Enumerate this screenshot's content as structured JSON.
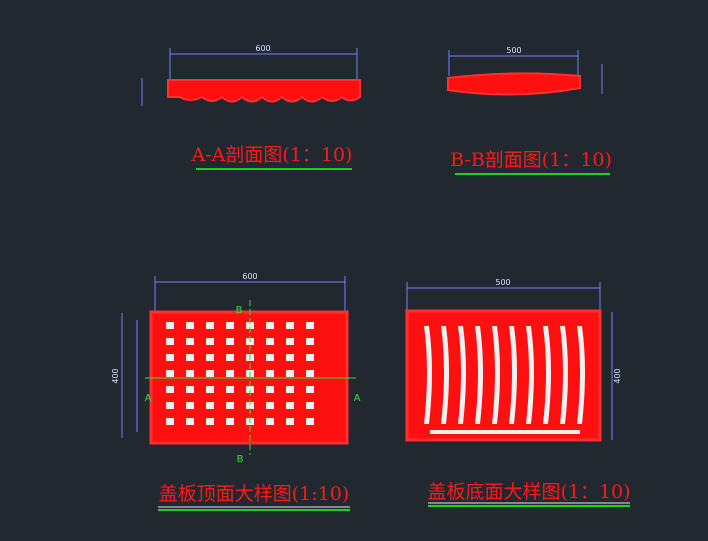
{
  "views": [
    {
      "title": "A-A剖面图(1：10)",
      "width_dim": "600"
    },
    {
      "title": "B-B剖面图(1：10)",
      "width_dim": "500"
    },
    {
      "title": "盖板顶面大样图(1:10)",
      "width_dim": "600",
      "height_dim": "400",
      "section_marks": [
        "A",
        "A",
        "B",
        "B"
      ]
    },
    {
      "title": "盖板底面大样图(1：10)",
      "width_dim": "500",
      "height_dim": "400"
    }
  ]
}
